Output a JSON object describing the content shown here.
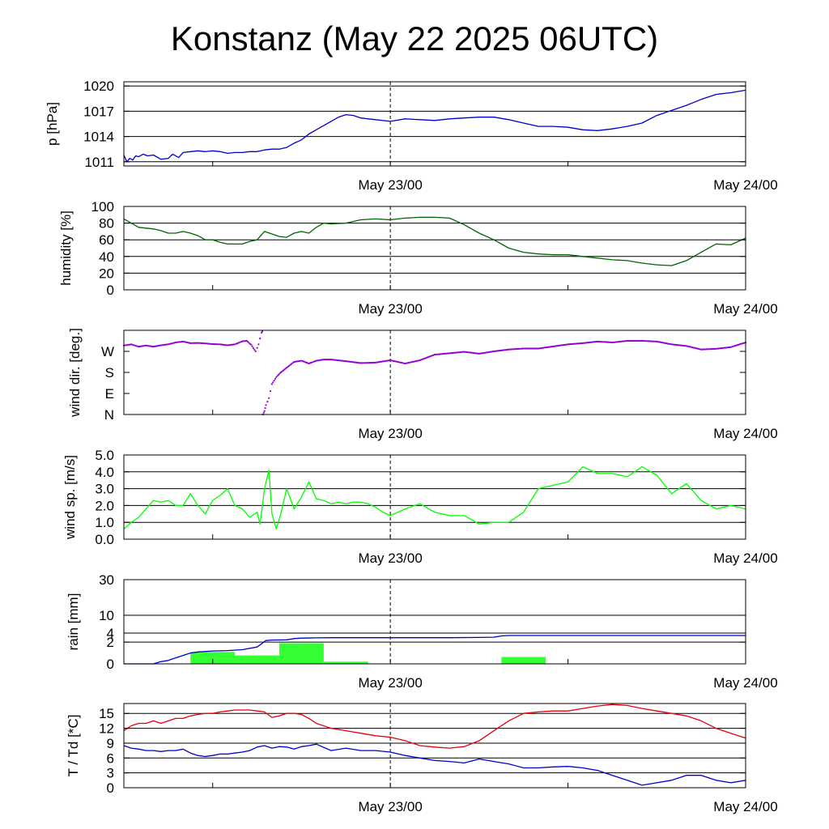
{
  "title": "Konstanz (May 22 2025 06UTC)",
  "colors": {
    "pressure": "#0000cc",
    "humidity": "#006400",
    "wind_dir": "#9400d3",
    "wind_speed": "#00ff00",
    "rain_bar": "#33ff33",
    "rain_sum": "#0000cc",
    "temperature": "#e8000b",
    "dewpoint": "#0000cc"
  },
  "chart_data": [
    {
      "id": "pressure",
      "type": "line",
      "ylabel": "p [hPa]",
      "ylim": [
        1010.5,
        1020.5
      ],
      "yticks": [
        1011,
        1014,
        1017,
        1020
      ],
      "ytick_labels": [
        "1011",
        "1014",
        "1017",
        "1020"
      ],
      "xlim": [
        0,
        42
      ],
      "xticks": [
        6,
        18,
        30
      ],
      "xtick_labels": [
        {
          "x": 18,
          "label": "May 23/00"
        },
        {
          "x": 42,
          "label": "May 24/00"
        }
      ],
      "grid": "horizontal",
      "series": [
        {
          "color_key": "pressure",
          "x": [
            0,
            0.2,
            0.4,
            0.6,
            0.8,
            1,
            1.3,
            1.6,
            2,
            2.5,
            3,
            3.3,
            3.7,
            4,
            4.5,
            5,
            5.5,
            6,
            6.5,
            7,
            7.5,
            8,
            8.5,
            9,
            9.5,
            10,
            10.5,
            11,
            11.5,
            12,
            12.5,
            13,
            13.5,
            14,
            14.5,
            15,
            15.5,
            16,
            16.5,
            17,
            18,
            19,
            20,
            21,
            22,
            23,
            24,
            25,
            26,
            27,
            28,
            29,
            30,
            31,
            32,
            33,
            34,
            35,
            36,
            37,
            38,
            39,
            40,
            41,
            42
          ],
          "y": [
            1011.8,
            1011.0,
            1011.4,
            1011.2,
            1011.7,
            1011.6,
            1011.9,
            1011.7,
            1011.8,
            1011.3,
            1011.4,
            1011.9,
            1011.5,
            1012.1,
            1012.2,
            1012.3,
            1012.2,
            1012.3,
            1012.2,
            1012.0,
            1012.1,
            1012.1,
            1012.2,
            1012.2,
            1012.4,
            1012.5,
            1012.5,
            1012.7,
            1013.2,
            1013.6,
            1014.3,
            1014.8,
            1015.3,
            1015.8,
            1016.3,
            1016.6,
            1016.5,
            1016.2,
            1016.1,
            1016.0,
            1015.8,
            1016.1,
            1016.0,
            1015.9,
            1016.1,
            1016.2,
            1016.3,
            1016.3,
            1016.0,
            1015.6,
            1015.2,
            1015.2,
            1015.1,
            1014.8,
            1014.7,
            1014.9,
            1015.2,
            1015.6,
            1016.5,
            1017.1,
            1017.7,
            1018.4,
            1019.0,
            1019.2,
            1019.5
          ]
        }
      ]
    },
    {
      "id": "humidity",
      "type": "line",
      "ylabel": "humidity [%]",
      "ylim": [
        0,
        100
      ],
      "yticks": [
        0,
        20,
        40,
        60,
        80,
        100
      ],
      "ytick_labels": [
        "0",
        "20",
        "40",
        "60",
        "80",
        "100"
      ],
      "xlim": [
        0,
        42
      ],
      "xticks": [
        6,
        18,
        30
      ],
      "xtick_labels": [
        {
          "x": 18,
          "label": "May 23/00"
        },
        {
          "x": 42,
          "label": "May 24/00"
        }
      ],
      "grid": "horizontal",
      "series": [
        {
          "color_key": "humidity",
          "x": [
            0,
            0.5,
            1,
            1.5,
            2,
            2.5,
            3,
            3.5,
            4,
            4.5,
            5,
            5.5,
            6,
            6.5,
            7,
            7.5,
            8,
            8.5,
            9,
            9.5,
            10,
            10.5,
            11,
            11.5,
            12,
            12.5,
            13,
            13.5,
            14,
            15,
            16,
            17,
            18,
            19,
            20,
            21,
            22,
            23,
            24,
            25,
            26,
            27,
            28,
            29,
            30,
            31,
            32,
            33,
            34,
            35,
            36,
            37,
            38,
            39,
            40,
            41,
            42
          ],
          "y": [
            85,
            80,
            75,
            74,
            73,
            71,
            68,
            68,
            70,
            68,
            65,
            60,
            60,
            57,
            55,
            55,
            55,
            58,
            60,
            70,
            67,
            64,
            63,
            68,
            70,
            68,
            75,
            80,
            79,
            80,
            84,
            85,
            84,
            86,
            87,
            87,
            86,
            78,
            68,
            60,
            50,
            45,
            43,
            42,
            42,
            40,
            38,
            36,
            35,
            32,
            30,
            29,
            35,
            45,
            55,
            54,
            62
          ]
        }
      ]
    },
    {
      "id": "wind_dir",
      "type": "scatter",
      "ylabel": "wind dir. [deg.]",
      "ylim": [
        0,
        360
      ],
      "yticks": [
        0,
        90,
        180,
        270
      ],
      "ytick_labels": [
        "N",
        "E",
        "S",
        "W"
      ],
      "xlim": [
        0,
        42
      ],
      "xticks": [
        6,
        18,
        30
      ],
      "xtick_labels": [
        {
          "x": 18,
          "label": "May 23/00"
        },
        {
          "x": 42,
          "label": "May 24/00"
        }
      ],
      "grid": "none",
      "series": [
        {
          "color_key": "wind_dir",
          "x": [
            0,
            0.5,
            1,
            1.5,
            2,
            2.5,
            3,
            3.5,
            4,
            4.5,
            5,
            5.5,
            6,
            6.5,
            7,
            7.5,
            8,
            8.3,
            8.6,
            8.9,
            9.1,
            9.3,
            9.4,
            9.5,
            9.6,
            9.8,
            10,
            10.3,
            10.6,
            11,
            11.5,
            12,
            12.5,
            13,
            13.5,
            14,
            15,
            16,
            17,
            18,
            19,
            20,
            21,
            22,
            23,
            24,
            25,
            26,
            27,
            28,
            29,
            30,
            31,
            32,
            33,
            34,
            35,
            36,
            37,
            38,
            39,
            40,
            41,
            42
          ],
          "y": [
            295,
            300,
            290,
            295,
            290,
            296,
            300,
            308,
            312,
            305,
            306,
            304,
            301,
            300,
            296,
            300,
            313,
            315,
            298,
            270,
            300,
            350,
            0,
            15,
            40,
            70,
            130,
            160,
            180,
            200,
            225,
            230,
            218,
            230,
            235,
            235,
            228,
            220,
            222,
            232,
            218,
            232,
            256,
            262,
            268,
            260,
            270,
            278,
            282,
            282,
            291,
            300,
            305,
            312,
            308,
            315,
            315,
            312,
            300,
            293,
            278,
            281,
            288,
            308
          ]
        }
      ]
    },
    {
      "id": "wind_speed",
      "type": "line",
      "ylabel": "wind sp. [m/s]",
      "ylim": [
        0,
        5
      ],
      "yticks": [
        0,
        1,
        2,
        3,
        4,
        5
      ],
      "ytick_labels": [
        "0.0",
        "1.0",
        "2.0",
        "3.0",
        "4.0",
        "5.0"
      ],
      "xlim": [
        0,
        42
      ],
      "xticks": [
        6,
        18,
        30
      ],
      "xtick_labels": [
        {
          "x": 18,
          "label": "May 23/00"
        },
        {
          "x": 42,
          "label": "May 24/00"
        }
      ],
      "grid": "horizontal",
      "series": [
        {
          "color_key": "wind_speed",
          "x": [
            0,
            0.5,
            1,
            1.5,
            2,
            2.5,
            3,
            3.5,
            4,
            4.5,
            5,
            5.5,
            6,
            6.5,
            7,
            7.5,
            8,
            8.5,
            9,
            9.2,
            9.5,
            9.8,
            10,
            10.3,
            10.6,
            11,
            11.5,
            12,
            12.5,
            13,
            13.5,
            14,
            14.5,
            15,
            15.5,
            16,
            16.5,
            17,
            17.5,
            18,
            19,
            20,
            21,
            22,
            23,
            24,
            25,
            26,
            27,
            28,
            29,
            30,
            31,
            32,
            33,
            34,
            35,
            36,
            37,
            38,
            39,
            40,
            41,
            42
          ],
          "y": [
            0.6,
            1.0,
            1.3,
            1.8,
            2.3,
            2.2,
            2.3,
            2.0,
            2.0,
            2.7,
            2.0,
            1.5,
            2.3,
            2.6,
            3.0,
            2.0,
            1.8,
            1.3,
            1.6,
            0.9,
            3.0,
            4.1,
            1.5,
            0.6,
            1.5,
            3.0,
            1.8,
            2.5,
            3.4,
            2.4,
            2.3,
            2.1,
            2.2,
            2.1,
            2.2,
            2.2,
            2.1,
            1.9,
            1.6,
            1.4,
            1.8,
            2.1,
            1.6,
            1.4,
            1.4,
            0.9,
            1.0,
            1.0,
            1.6,
            3.0,
            3.2,
            3.4,
            4.3,
            3.9,
            3.9,
            3.7,
            4.3,
            3.8,
            2.7,
            3.3,
            2.3,
            1.8,
            2.0,
            1.8
          ]
        }
      ]
    },
    {
      "id": "rain",
      "type": "bar",
      "ylabel": "rain [mm]",
      "ylim": [
        0,
        30
      ],
      "yscale": "sqrt",
      "yticks": [
        0,
        2,
        4,
        10,
        30
      ],
      "ytick_labels": [
        "0",
        "2",
        "4",
        "10",
        "30"
      ],
      "xlim": [
        0,
        42
      ],
      "xticks": [
        6,
        18,
        30
      ],
      "xtick_labels": [
        {
          "x": 18,
          "label": "May 23/00"
        },
        {
          "x": 42,
          "label": "May 24/00"
        }
      ],
      "grid": "horizontal",
      "bars": {
        "color_key": "rain_bar",
        "bins": [
          {
            "x0": 4.5,
            "x1": 7.5,
            "value": 0.6
          },
          {
            "x0": 7.5,
            "x1": 10.5,
            "value": 0.3
          },
          {
            "x0": 10.5,
            "x1": 13.5,
            "value": 1.8
          },
          {
            "x0": 13.5,
            "x1": 16.5,
            "value": 0.02
          },
          {
            "x0": 25.5,
            "x1": 28.5,
            "value": 0.2
          }
        ]
      },
      "series": [
        {
          "color_key": "rain_sum",
          "x": [
            0,
            2,
            2.5,
            3,
            3.5,
            4,
            4.5,
            5,
            6,
            7,
            8,
            9,
            9.3,
            9.6,
            10,
            11,
            11.5,
            12,
            13,
            14,
            15,
            16,
            17,
            18,
            20,
            22,
            24,
            25,
            25.5,
            26,
            26.5,
            28,
            30,
            34,
            38,
            42
          ],
          "y": [
            0,
            0,
            0.02,
            0.05,
            0.15,
            0.3,
            0.5,
            0.6,
            0.7,
            0.75,
            0.85,
            1.2,
            1.7,
            2.3,
            2.4,
            2.45,
            2.7,
            2.8,
            2.85,
            2.9,
            2.9,
            2.9,
            2.9,
            2.9,
            2.9,
            2.9,
            2.95,
            3.0,
            3.3,
            3.4,
            3.4,
            3.4,
            3.4,
            3.4,
            3.4,
            3.4
          ]
        }
      ]
    },
    {
      "id": "temperature",
      "type": "line",
      "ylabel": "T / Td [*C]",
      "ylim": [
        0,
        17
      ],
      "yticks": [
        0,
        3,
        6,
        9,
        12,
        15
      ],
      "ytick_labels": [
        "0",
        "3",
        "6",
        "9",
        "12",
        "15"
      ],
      "xlim": [
        0,
        42
      ],
      "xticks": [
        6,
        18,
        30
      ],
      "xtick_labels": [
        {
          "x": 18,
          "label": "May 23/00"
        },
        {
          "x": 42,
          "label": "May 24/00"
        }
      ],
      "grid": "horizontal",
      "series": [
        {
          "color_key": "temperature",
          "x": [
            0,
            0.5,
            1,
            1.5,
            2,
            2.5,
            3,
            3.5,
            4,
            4.5,
            5,
            5.5,
            6,
            6.5,
            7,
            7.5,
            8,
            8.5,
            9,
            9.5,
            10,
            10.5,
            11,
            11.5,
            12,
            12.5,
            13,
            14,
            15,
            16,
            17,
            18,
            19,
            20,
            21,
            22,
            23,
            24,
            25,
            26,
            27,
            28,
            29,
            30,
            31,
            32,
            33,
            34,
            35,
            36,
            37,
            38,
            39,
            40,
            41,
            42
          ],
          "y": [
            11.5,
            12.5,
            13.0,
            13.0,
            13.5,
            13.0,
            13.5,
            14.0,
            14.0,
            14.5,
            14.8,
            15.0,
            15.0,
            15.3,
            15.5,
            15.7,
            15.7,
            15.7,
            15.5,
            15.3,
            14.2,
            14.5,
            15.0,
            15.0,
            14.8,
            14.0,
            13.0,
            12.0,
            11.5,
            11.0,
            10.5,
            10.2,
            9.5,
            8.5,
            8.2,
            8.0,
            8.3,
            9.5,
            11.5,
            13.5,
            15.0,
            15.3,
            15.5,
            15.5,
            16.0,
            16.5,
            16.8,
            16.6,
            16.0,
            15.5,
            15.0,
            14.5,
            13.5,
            12.0,
            11.0,
            10.0
          ]
        },
        {
          "color_key": "dewpoint",
          "x": [
            0,
            0.5,
            1,
            1.5,
            2,
            2.5,
            3,
            3.5,
            4,
            4.5,
            5,
            5.5,
            6,
            6.5,
            7,
            7.5,
            8,
            8.5,
            9,
            9.5,
            10,
            10.5,
            11,
            11.5,
            12,
            12.5,
            13,
            14,
            15,
            16,
            17,
            18,
            19,
            20,
            21,
            22,
            23,
            24,
            25,
            26,
            27,
            28,
            29,
            30,
            31,
            32,
            33,
            34,
            35,
            36,
            37,
            38,
            39,
            40,
            41,
            42
          ],
          "y": [
            8.5,
            8.0,
            7.8,
            7.5,
            7.5,
            7.3,
            7.5,
            7.5,
            7.8,
            7.0,
            6.5,
            6.3,
            6.5,
            6.8,
            6.8,
            7.0,
            7.2,
            7.5,
            8.2,
            8.5,
            8.0,
            8.3,
            8.2,
            7.8,
            8.3,
            8.5,
            8.8,
            7.5,
            8.0,
            7.5,
            7.5,
            7.2,
            6.5,
            6.0,
            5.5,
            5.3,
            5.0,
            5.8,
            5.3,
            4.8,
            4.0,
            4.0,
            4.2,
            4.3,
            4.0,
            3.5,
            2.5,
            1.5,
            0.5,
            1.0,
            1.5,
            2.5,
            2.5,
            1.5,
            1.0,
            1.5
          ]
        }
      ]
    }
  ]
}
